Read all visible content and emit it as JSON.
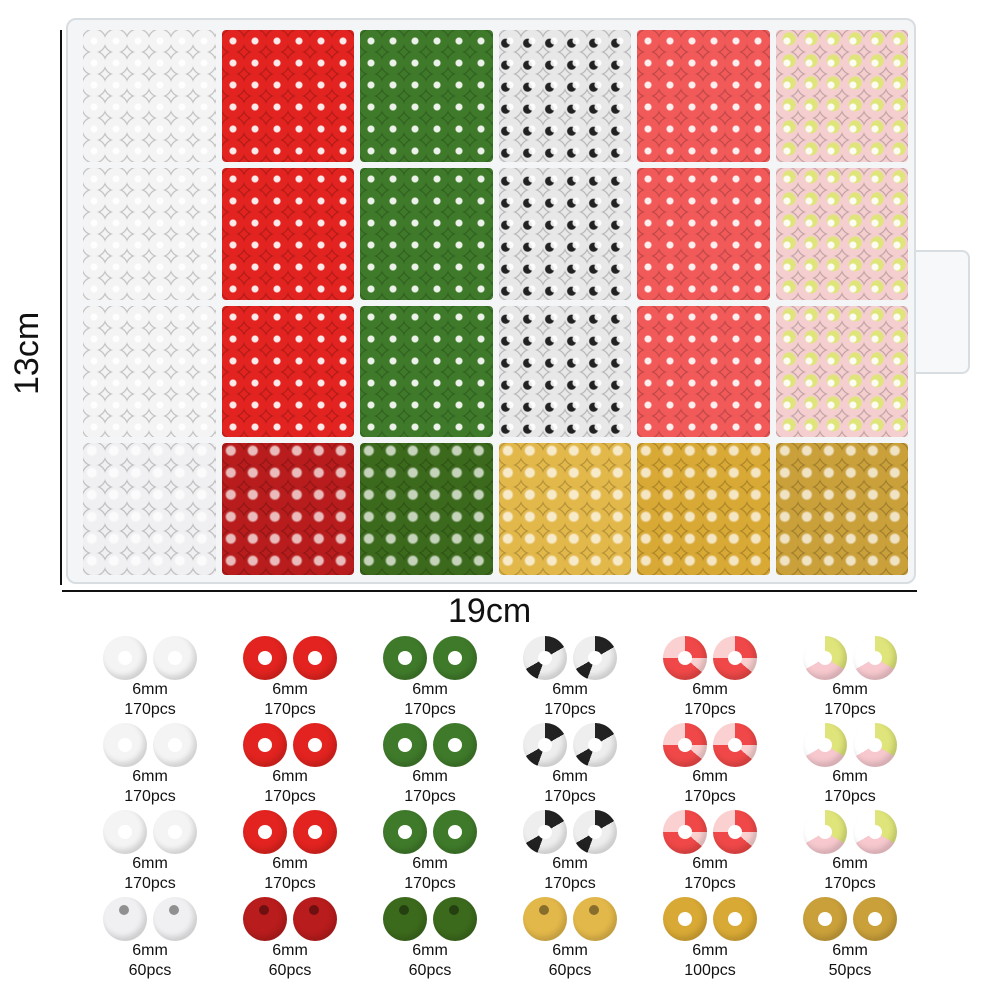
{
  "dimensions": {
    "height": "13cm",
    "width": "19cm"
  },
  "colors": {
    "white": "#f4f4f4",
    "red": "#e2231f",
    "green": "#3f7a2a",
    "black_white": "#e8e8e8",
    "candy": "#f25a5a",
    "pastel": "#f5cfd0",
    "pearl": "#f0f0f2",
    "red_pearl": "#b81c1c",
    "green_pearl": "#3c6a1c",
    "gold": "#e3b84a",
    "gold_spacer": "#d9a935",
    "rhinestone": "#caa03a"
  },
  "compartment_columns": [
    "white",
    "red",
    "green",
    "black_white",
    "candy",
    "pastel"
  ],
  "bottom_row": [
    "pearl",
    "red_pearl",
    "green_pearl",
    "gold",
    "gold_spacer",
    "rhinestone"
  ],
  "legend": [
    {
      "color": "white",
      "size": "6mm",
      "count": "170pcs"
    },
    {
      "color": "red",
      "size": "6mm",
      "count": "170pcs"
    },
    {
      "color": "green",
      "size": "6mm",
      "count": "170pcs"
    },
    {
      "color": "black_white",
      "size": "6mm",
      "count": "170pcs"
    },
    {
      "color": "candy",
      "size": "6mm",
      "count": "170pcs"
    },
    {
      "color": "pastel",
      "size": "6mm",
      "count": "170pcs"
    },
    {
      "color": "white",
      "size": "6mm",
      "count": "170pcs"
    },
    {
      "color": "red",
      "size": "6mm",
      "count": "170pcs"
    },
    {
      "color": "green",
      "size": "6mm",
      "count": "170pcs"
    },
    {
      "color": "black_white",
      "size": "6mm",
      "count": "170pcs"
    },
    {
      "color": "candy",
      "size": "6mm",
      "count": "170pcs"
    },
    {
      "color": "pastel",
      "size": "6mm",
      "count": "170pcs"
    },
    {
      "color": "white",
      "size": "6mm",
      "count": "170pcs"
    },
    {
      "color": "red",
      "size": "6mm",
      "count": "170pcs"
    },
    {
      "color": "green",
      "size": "6mm",
      "count": "170pcs"
    },
    {
      "color": "black_white",
      "size": "6mm",
      "count": "170pcs"
    },
    {
      "color": "candy",
      "size": "6mm",
      "count": "170pcs"
    },
    {
      "color": "pastel",
      "size": "6mm",
      "count": "170pcs"
    },
    {
      "color": "pearl",
      "size": "6mm",
      "count": "60pcs",
      "ball": true
    },
    {
      "color": "red_pearl",
      "size": "6mm",
      "count": "60pcs",
      "ball": true
    },
    {
      "color": "green_pearl",
      "size": "6mm",
      "count": "60pcs",
      "ball": true
    },
    {
      "color": "gold",
      "size": "6mm",
      "count": "60pcs",
      "ball": true
    },
    {
      "color": "gold_spacer",
      "size": "6mm",
      "count": "100pcs"
    },
    {
      "color": "rhinestone",
      "size": "6mm",
      "count": "50pcs"
    }
  ]
}
